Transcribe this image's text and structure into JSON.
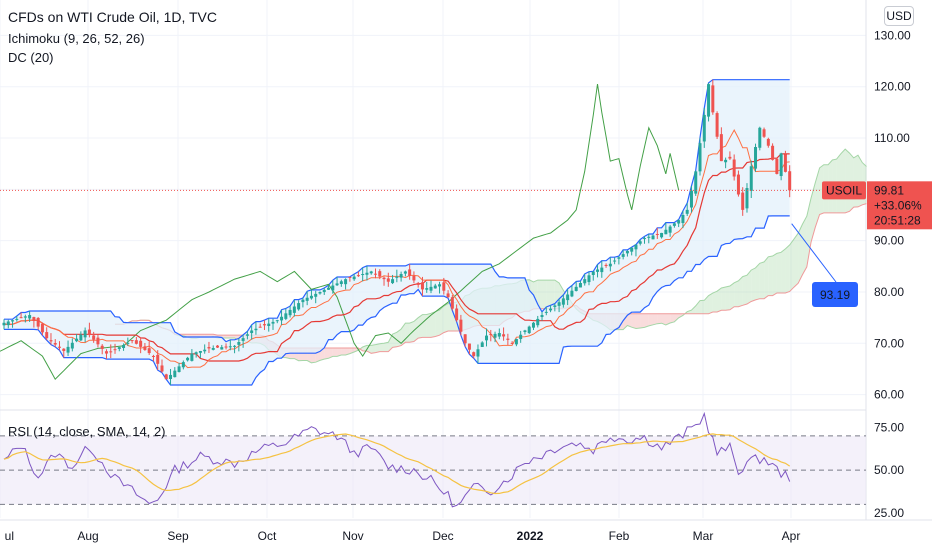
{
  "header": {
    "title": "CFDs on WTI Crude Oil, 1D, TVC",
    "ichimoku": "Ichimoku (9, 26, 52, 26)",
    "donchian": "DC (20)",
    "rsi": "RSI (14, close, SMA, 14, 2)"
  },
  "currency": "USD",
  "colors": {
    "up": "#26a69a",
    "down": "#ef5350",
    "dc_line": "#2962ff",
    "dc_fill": "#e3f0fb",
    "kijun": "#e53935",
    "lagging": "#43a047",
    "span_a": "#a5d6a7",
    "span_b": "#ef9a9a",
    "rsi": "#7e57c2",
    "rsi_ma": "#f5c242",
    "rsi_band": "#ede7f6"
  },
  "price_tag": {
    "symbol": "USOIL",
    "price": "99.81",
    "change": "+33.06%",
    "countdown": "20:51:28"
  },
  "callout": {
    "value": "93.19"
  },
  "chart_data": [
    {
      "type": "candlestick",
      "title": "CFDs on WTI Crude Oil, 1D, TVC",
      "ylim": [
        57,
        133
      ],
      "yticks": [
        "130.00",
        "120.00",
        "110.00",
        "100.00",
        "90.00",
        "80.00",
        "70.00",
        "60.00"
      ],
      "yticks_values": [
        130,
        120,
        110,
        100,
        90,
        80,
        70,
        60
      ],
      "xticks": [
        "ul",
        "Aug",
        "Sep",
        "Oct",
        "Nov",
        "Dec",
        "2022",
        "Feb",
        "Mar",
        "Apr"
      ],
      "xticks_bold": [
        "2022"
      ],
      "anchors": [
        [
          0,
          74.0
        ],
        [
          6,
          75.5
        ],
        [
          10,
          71.0
        ],
        [
          14,
          68.5
        ],
        [
          19,
          72.5
        ],
        [
          24,
          68.0
        ],
        [
          30,
          70.5
        ],
        [
          35,
          67.5
        ],
        [
          38,
          63.0
        ],
        [
          44,
          68.0
        ],
        [
          48,
          69.0
        ],
        [
          54,
          69.5
        ],
        [
          58,
          72.5
        ],
        [
          64,
          74.5
        ],
        [
          70,
          78.5
        ],
        [
          74,
          80.0
        ],
        [
          80,
          82.5
        ],
        [
          86,
          84.0
        ],
        [
          90,
          82.0
        ],
        [
          94,
          84.0
        ],
        [
          98,
          80.5
        ],
        [
          102,
          81.5
        ],
        [
          104,
          79.0
        ],
        [
          108,
          70.0
        ],
        [
          110,
          67.5
        ],
        [
          113,
          71.5
        ],
        [
          116,
          72.0
        ],
        [
          119,
          70.0
        ],
        [
          122,
          72.5
        ],
        [
          126,
          75.5
        ],
        [
          130,
          78.0
        ],
        [
          134,
          81.0
        ],
        [
          138,
          84.0
        ],
        [
          142,
          85.5
        ],
        [
          146,
          88.0
        ],
        [
          150,
          90.5
        ],
        [
          154,
          91.5
        ],
        [
          158,
          94.0
        ],
        [
          160,
          96.0
        ],
        [
          162,
          103.5
        ],
        [
          164,
          114.5
        ],
        [
          165,
          120.5
        ],
        [
          166,
          115.0
        ],
        [
          168,
          105.5
        ],
        [
          170,
          106.0
        ],
        [
          172,
          99.0
        ],
        [
          173,
          96.0
        ],
        [
          175,
          104.5
        ],
        [
          177,
          112.0
        ],
        [
          179,
          108.5
        ],
        [
          181,
          103.0
        ],
        [
          182,
          107.0
        ],
        [
          184,
          99.81
        ]
      ]
    },
    {
      "type": "line",
      "title": "RSI (14, close, SMA, 14, 2)",
      "ylim": [
        22,
        84
      ],
      "yticks": [
        "75.00",
        "50.00",
        "25.00"
      ],
      "yticks_values": [
        75,
        50,
        25
      ],
      "bands": [
        30,
        50,
        70
      ],
      "anchors": [
        [
          0,
          55
        ],
        [
          4,
          65
        ],
        [
          8,
          46
        ],
        [
          12,
          60
        ],
        [
          16,
          52
        ],
        [
          20,
          64
        ],
        [
          26,
          45
        ],
        [
          30,
          38
        ],
        [
          34,
          30
        ],
        [
          36,
          33
        ],
        [
          40,
          50
        ],
        [
          46,
          58
        ],
        [
          54,
          54
        ],
        [
          60,
          62
        ],
        [
          66,
          66
        ],
        [
          72,
          74
        ],
        [
          78,
          70
        ],
        [
          82,
          60
        ],
        [
          86,
          63
        ],
        [
          90,
          52
        ],
        [
          96,
          50
        ],
        [
          100,
          44
        ],
        [
          104,
          35
        ],
        [
          106,
          28
        ],
        [
          110,
          40
        ],
        [
          114,
          38
        ],
        [
          118,
          45
        ],
        [
          122,
          55
        ],
        [
          126,
          59
        ],
        [
          130,
          64
        ],
        [
          134,
          66
        ],
        [
          138,
          62
        ],
        [
          142,
          70
        ],
        [
          146,
          68
        ],
        [
          150,
          69
        ],
        [
          154,
          63
        ],
        [
          158,
          69
        ],
        [
          162,
          76
        ],
        [
          164,
          82
        ],
        [
          167,
          60
        ],
        [
          170,
          63
        ],
        [
          172,
          49
        ],
        [
          174,
          55
        ],
        [
          178,
          57
        ],
        [
          182,
          48
        ],
        [
          184,
          46
        ]
      ],
      "current_rsi": 46
    }
  ]
}
